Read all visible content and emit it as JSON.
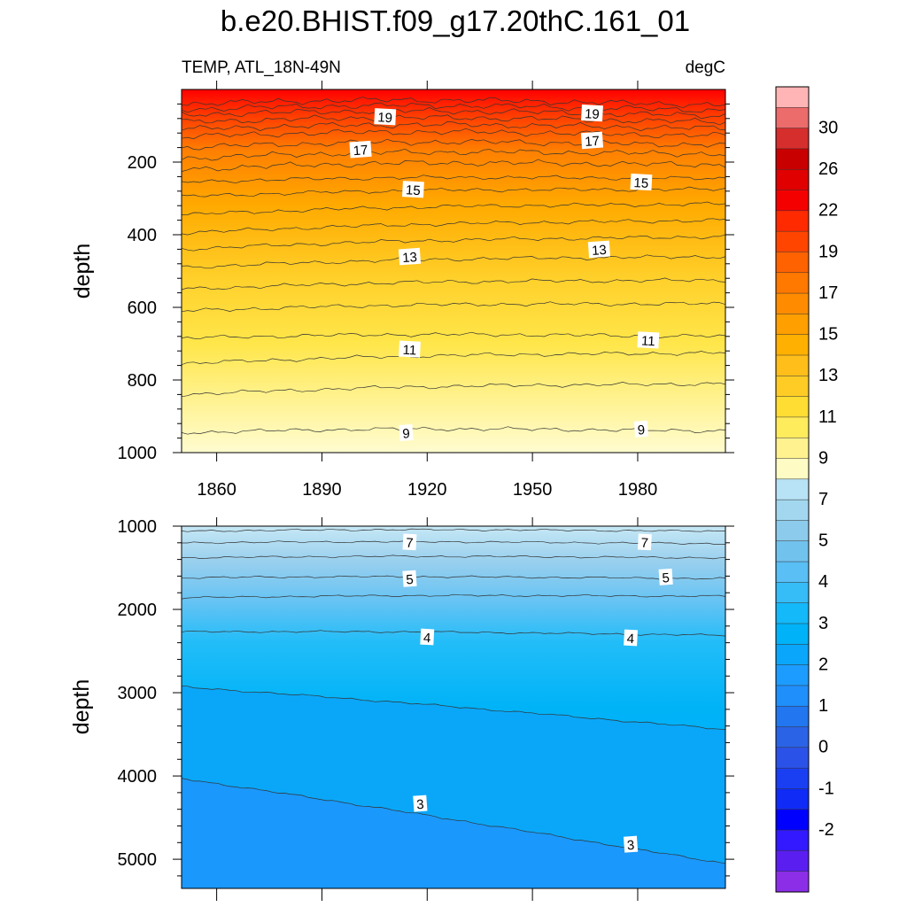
{
  "title": "b.e20.BHIST.f09_g17.20thC.161_01",
  "chart_data": [
    {
      "type": "contour",
      "panel": "upper",
      "left_label": "TEMP, ATL_18N-49N",
      "right_label": "degC",
      "ylabel": "depth",
      "xlabel": "",
      "xlim": [
        1850,
        2005
      ],
      "xticks": [
        1860,
        1890,
        1920,
        1950,
        1980
      ],
      "ylim": [
        1000,
        0
      ],
      "yticks": [
        200,
        400,
        600,
        800,
        1000
      ],
      "contour_levels": [
        9,
        10,
        11,
        12,
        13,
        14,
        15,
        16,
        17,
        18,
        19,
        20,
        21,
        22
      ],
      "contour_depths_start": [
        945,
        840,
        755,
        685,
        610,
        550,
        490,
        440,
        395,
        345,
        295,
        255,
        220,
        190,
        160,
        130,
        110,
        90,
        70,
        55,
        40
      ],
      "contour_depths_end": [
        935,
        805,
        720,
        675,
        585,
        520,
        455,
        400,
        355,
        310,
        270,
        240,
        200,
        170,
        145,
        120,
        100,
        82,
        65,
        50,
        35
      ],
      "labels": [
        {
          "text": "19",
          "year": 1908,
          "depth": 75
        },
        {
          "text": "17",
          "year": 1901,
          "depth": 165
        },
        {
          "text": "15",
          "year": 1916,
          "depth": 275
        },
        {
          "text": "13",
          "year": 1915,
          "depth": 460
        },
        {
          "text": "11",
          "year": 1915,
          "depth": 715
        },
        {
          "text": "9",
          "year": 1914,
          "depth": 945
        },
        {
          "text": "19",
          "year": 1967,
          "depth": 65
        },
        {
          "text": "17",
          "year": 1967,
          "depth": 140
        },
        {
          "text": "15",
          "year": 1981,
          "depth": 255
        },
        {
          "text": "13",
          "year": 1969,
          "depth": 440
        },
        {
          "text": "11",
          "year": 1983,
          "depth": 690
        },
        {
          "text": "9",
          "year": 1981,
          "depth": 935
        }
      ]
    },
    {
      "type": "contour",
      "panel": "lower",
      "ylabel": "depth",
      "xlabel": "",
      "xlim": [
        1850,
        2005
      ],
      "ylim": [
        5350,
        1000
      ],
      "yticks": [
        1000,
        2000,
        3000,
        4000,
        5000
      ],
      "contour_levels": [
        3,
        4,
        5,
        6,
        7,
        8
      ],
      "contour_lines": [
        {
          "level": 8,
          "start": 1060,
          "end": 1050
        },
        {
          "level": 7,
          "start": 1200,
          "end": 1200
        },
        {
          "level": 6,
          "start": 1380,
          "end": 1370
        },
        {
          "level": 5,
          "start": 1620,
          "end": 1620
        },
        {
          "level": 4.5,
          "start": 1860,
          "end": 1830
        },
        {
          "level": 4,
          "start": 2270,
          "end": 2300
        },
        {
          "level": 3.5,
          "start": 2930,
          "end": 3430
        },
        {
          "level": 3,
          "start": 4030,
          "end": 5040
        }
      ],
      "labels": [
        {
          "text": "7",
          "year": 1915,
          "depth": 1190
        },
        {
          "text": "5",
          "year": 1915,
          "depth": 1630
        },
        {
          "text": "4",
          "year": 1920,
          "depth": 2330
        },
        {
          "text": "3",
          "year": 1918,
          "depth": 4330
        },
        {
          "text": "7",
          "year": 1982,
          "depth": 1190
        },
        {
          "text": "5",
          "year": 1988,
          "depth": 1610
        },
        {
          "text": "4",
          "year": 1978,
          "depth": 2340
        },
        {
          "text": "3",
          "year": 1978,
          "depth": 4820
        }
      ]
    }
  ],
  "colorbar": {
    "tick_labels": [
      "30",
      "26",
      "22",
      "19",
      "17",
      "15",
      "13",
      "11",
      "9",
      "7",
      "5",
      "4",
      "3",
      "2",
      "1",
      "0",
      "-1",
      "-2"
    ],
    "colors": [
      "#ffb5b5",
      "#ec6b6b",
      "#d62d2d",
      "#c90000",
      "#e00000",
      "#f50000",
      "#ff2a00",
      "#ff4500",
      "#ff6200",
      "#ff7800",
      "#ff8c00",
      "#ff9f00",
      "#ffb000",
      "#ffbe1a",
      "#ffcc26",
      "#ffdd33",
      "#ffec5c",
      "#fff28f",
      "#fffbc4",
      "#b8e2f5",
      "#a3d7f0",
      "#8ccbeb",
      "#72c2ee",
      "#59bff5",
      "#36bcf7",
      "#13b9f9",
      "#00b2f8",
      "#0aa6fb",
      "#1d9cff",
      "#1f8ffb",
      "#2277f0",
      "#2b63e6",
      "#2b52e8",
      "#1a3ef2",
      "#0f2bf5",
      "#0000ff",
      "#3219ff",
      "#5a1ef0",
      "#8c2ee8"
    ]
  }
}
